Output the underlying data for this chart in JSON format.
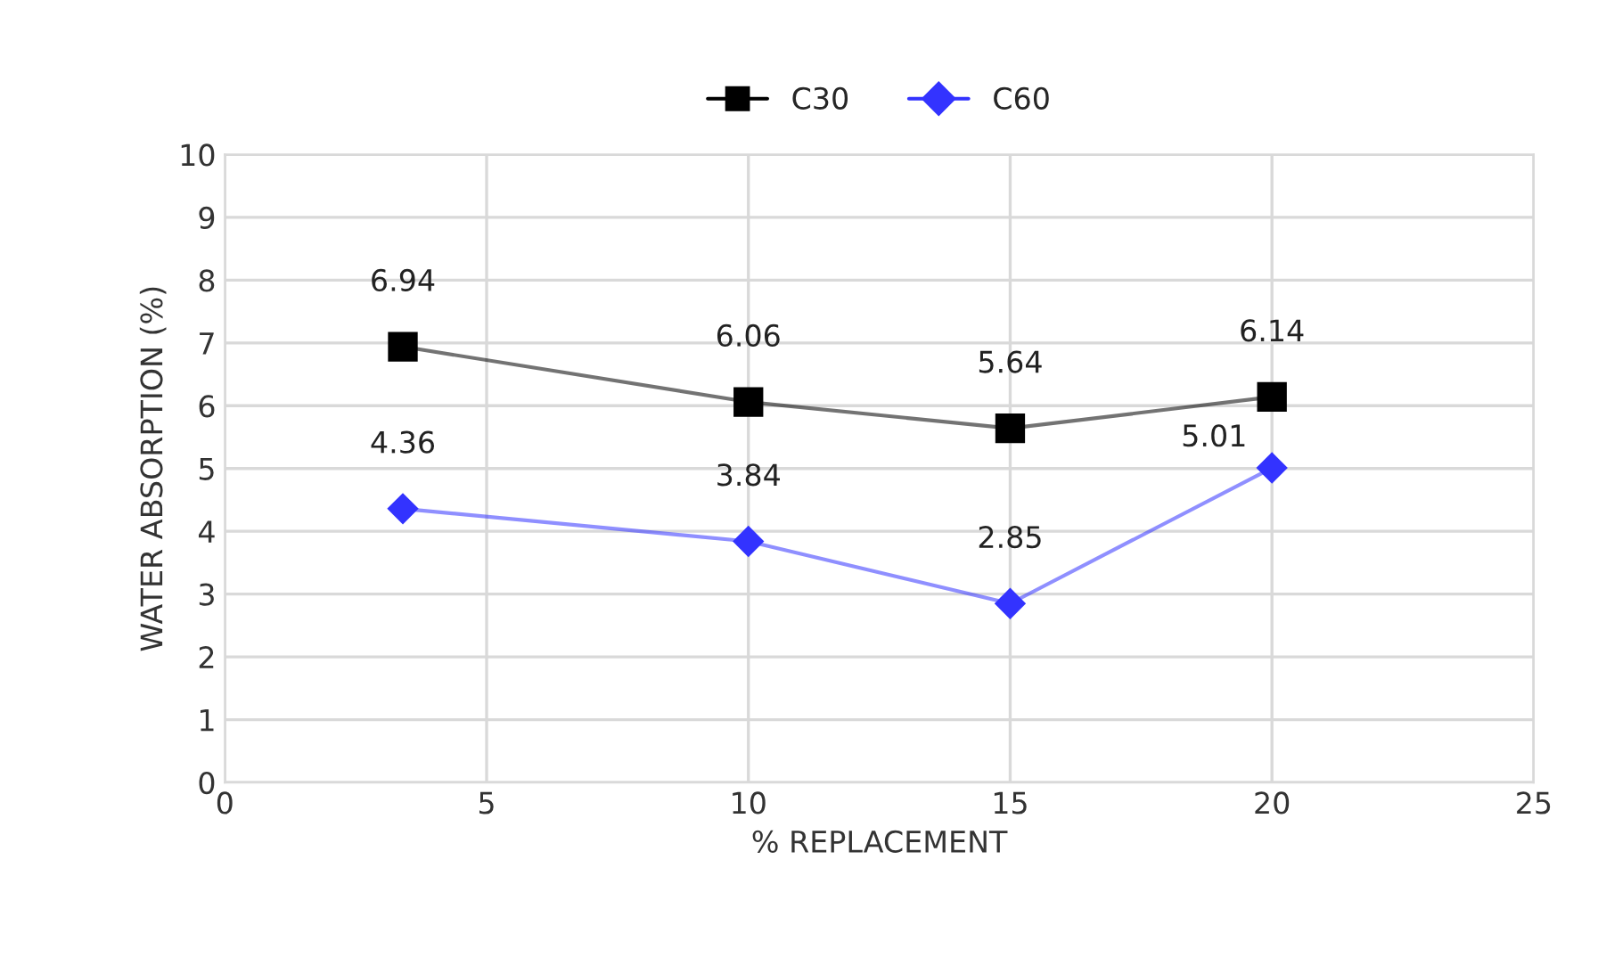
{
  "chart_data": {
    "type": "line",
    "xlabel": "% REPLACEMENT",
    "ylabel": "WATER ABSORPTION (%)",
    "series": [
      {
        "name": "C30",
        "color": "#000000",
        "marker": "square",
        "x": [
          3.4,
          10,
          15,
          20
        ],
        "values": [
          6.94,
          6.06,
          5.64,
          6.14
        ]
      },
      {
        "name": "C60",
        "color": "#3333ff",
        "marker": "diamond",
        "x": [
          3.4,
          10,
          15,
          20
        ],
        "values": [
          4.36,
          3.84,
          2.85,
          5.01
        ]
      }
    ],
    "xlim": [
      0,
      25
    ],
    "xticks": [
      0,
      5,
      10,
      15,
      20,
      25
    ],
    "ylim": [
      0,
      10
    ],
    "yticks": [
      0,
      1,
      2,
      3,
      4,
      5,
      6,
      7,
      8,
      9,
      10
    ],
    "grid": true,
    "legend": "top",
    "data_labels": true,
    "line_style": "solid"
  }
}
